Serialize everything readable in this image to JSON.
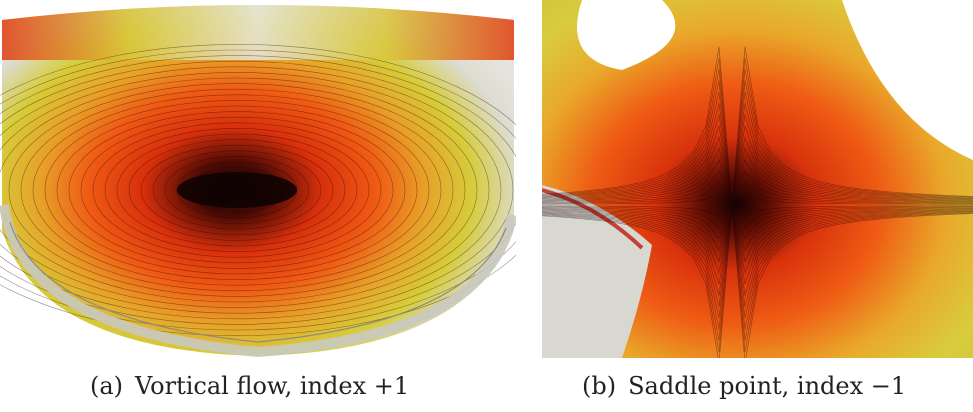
{
  "panels": [
    {
      "label": "(a)",
      "caption": "Vortical flow, index +1"
    },
    {
      "label": "(b)",
      "caption": "Saddle point, index −1"
    }
  ],
  "colors": {
    "core": "#1a0505",
    "red": "#e83a10",
    "orange": "#f07a18",
    "yellow": "#d8c830",
    "white": "#e8e8e0",
    "background": "#ffffff"
  }
}
